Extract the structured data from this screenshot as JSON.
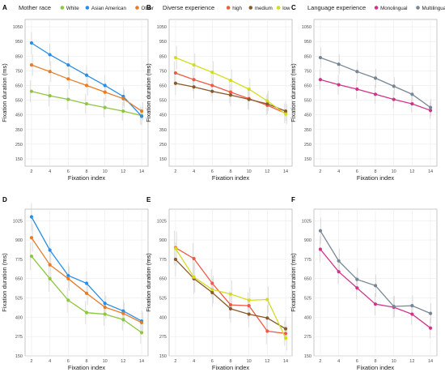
{
  "figure": {
    "x_tick_labels": [
      "2",
      "4",
      "6",
      "8",
      "10",
      "12",
      "14"
    ],
    "colors": {
      "green": "#8dc63f",
      "blue": "#2b8de4",
      "orange": "#e57c2a",
      "red": "#ee5a45",
      "brown": "#8a5a2b",
      "yellow": "#d4dc1e",
      "magenta": "#d1338a",
      "gray": "#768694",
      "panel_bg": "#ffffff",
      "grid": "#ebebeb",
      "border": "#b0b0b0",
      "errorbar": "#cccccc"
    }
  },
  "chart_data": [
    {
      "panel": "A",
      "type": "line",
      "legend_title": "Mother race",
      "xlabel": "Fixation index",
      "ylabel": "Fixation duration (ms)",
      "x": [
        2,
        4,
        6,
        8,
        10,
        12,
        14
      ],
      "ylim": [
        100,
        1100
      ],
      "yticks": [
        "150",
        "250",
        "350",
        "450",
        "550",
        "650",
        "750",
        "850",
        "950",
        "1050"
      ],
      "series": [
        {
          "name": "White",
          "color": "#8dc63f",
          "values": [
            610,
            580,
            555,
            525,
            500,
            475,
            445
          ]
        },
        {
          "name": "Asian American",
          "color": "#2b8de4",
          "values": [
            940,
            860,
            790,
            720,
            650,
            575,
            440
          ]
        },
        {
          "name": "Other",
          "color": "#e57c2a",
          "values": [
            790,
            745,
            695,
            650,
            605,
            560,
            475
          ]
        }
      ],
      "error": [
        75,
        72,
        70,
        68,
        66,
        64,
        62
      ]
    },
    {
      "panel": "B",
      "type": "line",
      "legend_title": "Diverse experience",
      "xlabel": "Fixation index",
      "ylabel": "Fixation duration (ms)",
      "x": [
        2,
        4,
        6,
        8,
        10,
        12,
        14
      ],
      "ylim": [
        100,
        1100
      ],
      "yticks": [
        "150",
        "250",
        "350",
        "450",
        "550",
        "650",
        "750",
        "850",
        "950",
        "1050"
      ],
      "series": [
        {
          "name": "high",
          "color": "#ee5a45",
          "values": [
            735,
            690,
            650,
            605,
            560,
            515,
            460
          ]
        },
        {
          "name": "medium",
          "color": "#8a5a2b",
          "values": [
            665,
            640,
            610,
            585,
            555,
            525,
            475
          ]
        },
        {
          "name": "low",
          "color": "#d4dc1e",
          "values": [
            840,
            790,
            740,
            685,
            625,
            545,
            455
          ]
        }
      ],
      "error": [
        80,
        78,
        76,
        74,
        72,
        70,
        68
      ]
    },
    {
      "panel": "C",
      "type": "line",
      "legend_title": "Language experience",
      "xlabel": "Fixation index",
      "ylabel": "Fixation duration (ms)",
      "x": [
        2,
        4,
        6,
        8,
        10,
        12,
        14
      ],
      "ylim": [
        100,
        1100
      ],
      "yticks": [
        "150",
        "250",
        "350",
        "450",
        "550",
        "650",
        "750",
        "850",
        "950",
        "1050"
      ],
      "series": [
        {
          "name": "Monolingual",
          "color": "#d1338a",
          "values": [
            690,
            655,
            625,
            590,
            555,
            525,
            480
          ]
        },
        {
          "name": "Multilingual",
          "color": "#768694",
          "values": [
            840,
            795,
            745,
            700,
            645,
            590,
            500
          ]
        }
      ],
      "error": [
        70,
        68,
        66,
        64,
        62,
        60,
        58
      ]
    },
    {
      "panel": "D",
      "type": "line",
      "xlabel": "Fixation index",
      "ylabel": "Fixation duration (ms)",
      "x": [
        2,
        4,
        6,
        8,
        10,
        12,
        14
      ],
      "ylim": [
        150,
        1100
      ],
      "yticks": [
        "150",
        "275",
        "400",
        "525",
        "650",
        "775",
        "900",
        "1025"
      ],
      "series": [
        {
          "name": "White",
          "color": "#8dc63f",
          "values": [
            795,
            650,
            510,
            430,
            420,
            385,
            300
          ]
        },
        {
          "name": "Asian American",
          "color": "#2b8de4",
          "values": [
            1050,
            835,
            670,
            620,
            490,
            440,
            375
          ]
        },
        {
          "name": "Other",
          "color": "#e57c2a",
          "values": [
            915,
            740,
            650,
            555,
            465,
            425,
            365
          ]
        }
      ],
      "error": [
        90,
        85,
        80,
        75,
        75,
        70,
        70
      ]
    },
    {
      "panel": "E",
      "type": "line",
      "xlabel": "Fixation index",
      "ylabel": "Fixation duration (ms)",
      "x": [
        2,
        4,
        6,
        8,
        10,
        12,
        14
      ],
      "ylim": [
        150,
        1100
      ],
      "yticks": [
        "150",
        "275",
        "400",
        "525",
        "650",
        "775",
        "900",
        "1025"
      ],
      "series": [
        {
          "name": "high",
          "color": "#ee5a45",
          "values": [
            850,
            780,
            620,
            480,
            475,
            310,
            295
          ]
        },
        {
          "name": "medium",
          "color": "#8a5a2b",
          "values": [
            775,
            650,
            560,
            455,
            420,
            395,
            325
          ]
        },
        {
          "name": "low",
          "color": "#d4dc1e",
          "values": [
            845,
            660,
            580,
            550,
            510,
            515,
            265
          ]
        }
      ],
      "error": [
        110,
        100,
        90,
        90,
        85,
        85,
        80
      ]
    },
    {
      "panel": "F",
      "type": "line",
      "xlabel": "Fixation index",
      "ylabel": "Fixation duration (ms)",
      "x": [
        2,
        4,
        6,
        8,
        10,
        12,
        14
      ],
      "ylim": [
        150,
        1100
      ],
      "yticks": [
        "150",
        "275",
        "400",
        "525",
        "650",
        "775",
        "900",
        "1025"
      ],
      "series": [
        {
          "name": "Monolingual",
          "color": "#d1338a",
          "values": [
            840,
            695,
            590,
            485,
            465,
            420,
            330
          ]
        },
        {
          "name": "Multilingual",
          "color": "#768694",
          "values": [
            960,
            765,
            645,
            605,
            470,
            475,
            425
          ]
        }
      ],
      "error": [
        85,
        80,
        75,
        72,
        70,
        68,
        65
      ]
    }
  ]
}
